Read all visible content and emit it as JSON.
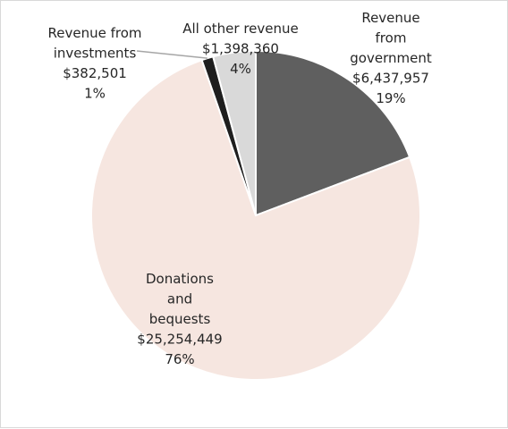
{
  "chart_data": {
    "type": "pie",
    "title": "",
    "start_angle_deg": 0,
    "direction": "clockwise",
    "legend": "none",
    "slices": [
      {
        "label": "Revenue from government",
        "value": 6437957,
        "percent_label": "19%",
        "value_label": "$6,437,957",
        "label_lines": [
          "Revenue",
          "from",
          "government"
        ],
        "color": "#5f5f5f"
      },
      {
        "label": "Donations and bequests",
        "value": 25254449,
        "percent_label": "76%",
        "value_label": "$25,254,449",
        "label_lines": [
          "Donations",
          "and",
          "bequests"
        ],
        "color": "#f6e6e0"
      },
      {
        "label": "Revenue from investments",
        "value": 382501,
        "percent_label": "1%",
        "value_label": "$382,501",
        "label_lines": [
          "Revenue from",
          "investments"
        ],
        "color": "#1e1e1e"
      },
      {
        "label": "All other revenue",
        "value": 1398360,
        "percent_label": "4%",
        "value_label": "$1,398,360",
        "label_lines": [
          "All other revenue"
        ],
        "color": "#d9d9d9"
      }
    ]
  }
}
